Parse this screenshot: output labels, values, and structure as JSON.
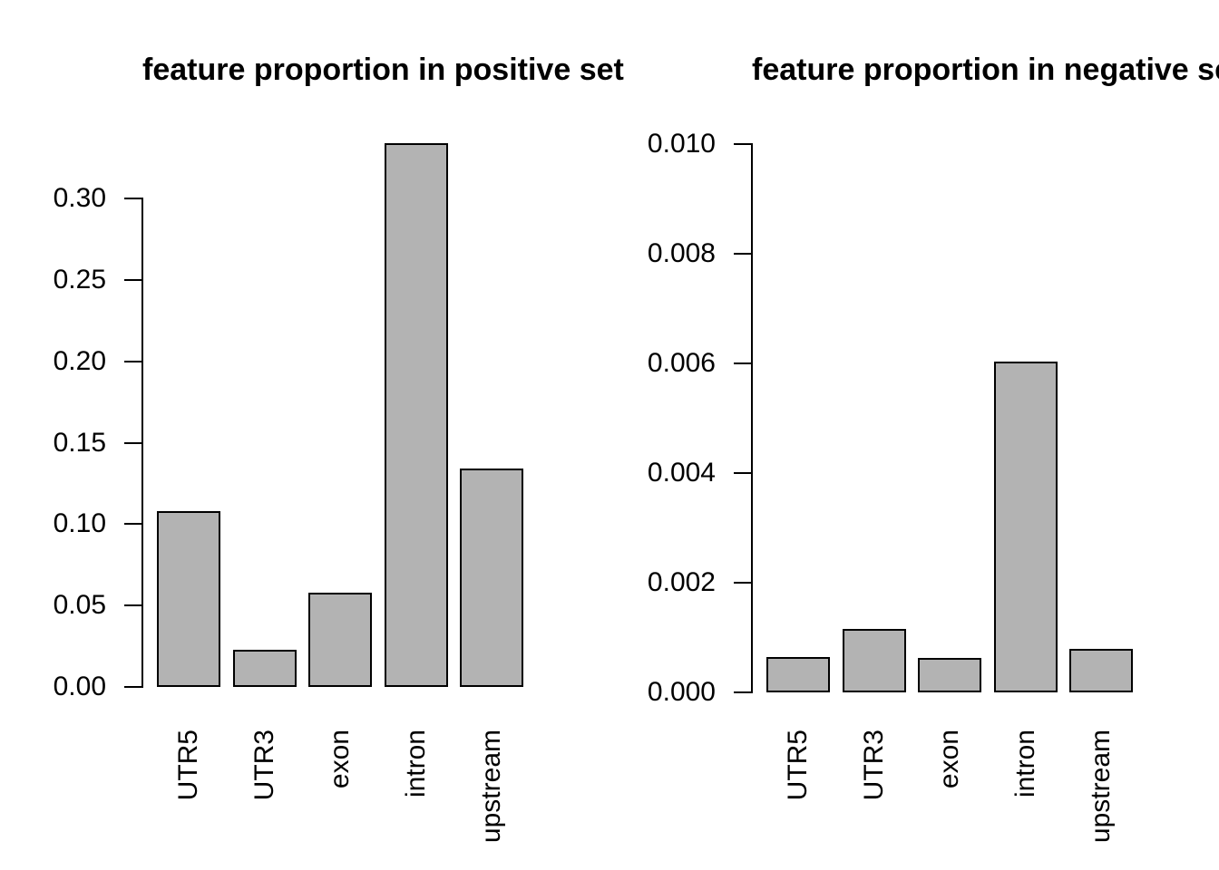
{
  "page": {
    "background": "#ffffff",
    "text_color": "#000000"
  },
  "chart_data": [
    {
      "type": "bar",
      "title": "feature proportion in positive set",
      "categories": [
        "UTR5",
        "UTR3",
        "exon",
        "intron",
        "upstream"
      ],
      "values": [
        0.108,
        0.023,
        0.058,
        0.334,
        0.134
      ],
      "xlabel": "",
      "ylabel": "",
      "ylim": [
        0,
        0.3
      ],
      "ytick_labels": [
        "0.00",
        "0.05",
        "0.10",
        "0.15",
        "0.20",
        "0.25",
        "0.30"
      ],
      "grid": false,
      "legend": "none",
      "bar_fill": "#b3b3b3",
      "bar_stroke": "#000000",
      "axis_color": "#000000",
      "x_labels_rotation_degrees": 90,
      "note": "intron bar extends above the top axis tick (0.30)"
    },
    {
      "type": "bar",
      "title": "feature proportion in negative set",
      "categories": [
        "UTR5",
        "UTR3",
        "exon",
        "intron",
        "upstream"
      ],
      "values": [
        0.00064,
        0.00116,
        0.00063,
        0.00603,
        0.00079
      ],
      "xlabel": "",
      "ylabel": "",
      "ylim": [
        0,
        0.01
      ],
      "ytick_labels": [
        "0.000",
        "0.002",
        "0.004",
        "0.006",
        "0.008",
        "0.010"
      ],
      "grid": false,
      "legend": "none",
      "bar_fill": "#b3b3b3",
      "bar_stroke": "#000000",
      "axis_color": "#000000",
      "x_labels_rotation_degrees": 90,
      "note": "title is clipped at the right edge of the image"
    }
  ]
}
